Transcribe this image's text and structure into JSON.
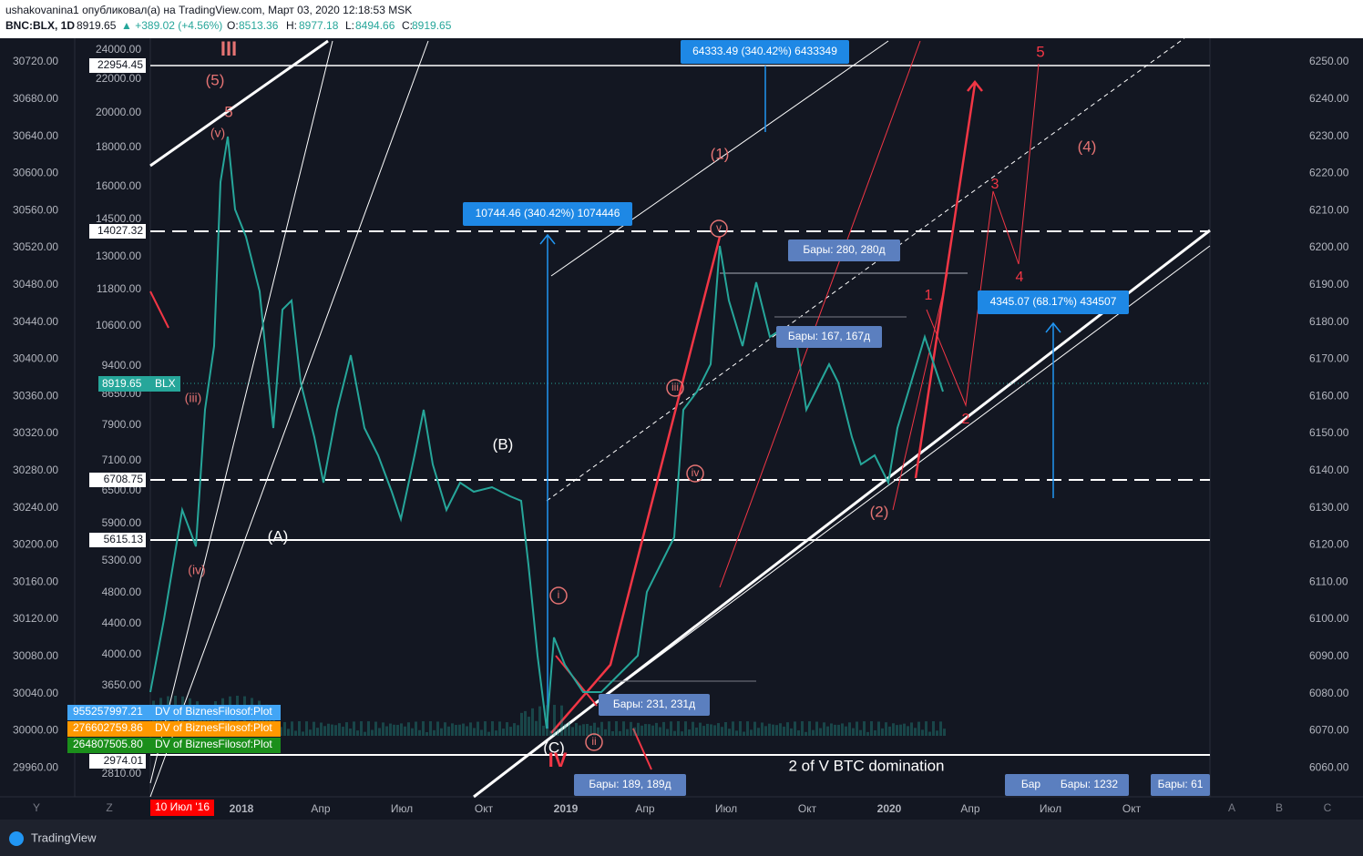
{
  "header": {
    "author_line": "ushakovanina1 опубликовал(а) на TradingView.com, Март 03, 2020 12:18:53 MSK",
    "symbol": "BNC:BLX, 1D",
    "price": "8919.65",
    "change": "▲ +389.02 (+4.56%)",
    "open_label": "O:",
    "open": "8513.36",
    "high_label": "H:",
    "high": "8977.18",
    "low_label": "L:",
    "low": "8494.66",
    "close_label": "C:",
    "close": "8919.65"
  },
  "scale_left": [
    "30720.00",
    "30680.00",
    "30640.00",
    "30600.00",
    "30560.00",
    "30520.00",
    "30480.00",
    "30440.00",
    "30400.00",
    "30360.00",
    "30320.00",
    "30280.00",
    "30240.00",
    "30200.00",
    "30160.00",
    "30120.00",
    "30080.00",
    "30040.00",
    "30000.00",
    "29960.00"
  ],
  "scale_price": [
    "24000.00",
    "22000.00",
    "20000.00",
    "18000.00",
    "16000.00",
    "14500.00",
    "13000.00",
    "11800.00",
    "10600.00",
    "9400.00",
    "8650.00",
    "7900.00",
    "7100.00",
    "6500.00",
    "5900.00",
    "5300.00",
    "4800.00",
    "4400.00",
    "4000.00",
    "3650.00",
    "2810.00"
  ],
  "scale_right": [
    "6250.00",
    "6240.00",
    "6230.00",
    "6220.00",
    "6210.00",
    "6200.00",
    "6190.00",
    "6180.00",
    "6170.00",
    "6160.00",
    "6150.00",
    "6140.00",
    "6130.00",
    "6120.00",
    "6110.00",
    "6100.00",
    "6090.00",
    "6080.00",
    "6070.00",
    "6060.00"
  ],
  "level_labels": [
    "22954.45",
    "14027.32",
    "6708.75",
    "5615.13",
    "2974.01"
  ],
  "current_price": {
    "value": "8919.65",
    "symbol": "BLX"
  },
  "indicators": [
    {
      "value": "955257997.21",
      "name": "DV of BiznesFilosof:Plot"
    },
    {
      "value": "276602759.86",
      "name": "DV of BiznesFilosof:Plot"
    },
    {
      "value": "264807505.80",
      "name": "DV of BiznesFilosof:Plot"
    }
  ],
  "time_start": "10 Июл '16",
  "time_axis": [
    "2018",
    "Апр",
    "Июл",
    "Окт",
    "2019",
    "Апр",
    "Июл",
    "Окт",
    "2020",
    "Апр",
    "Июл",
    "Окт"
  ],
  "measure_boxes": [
    "64333.49 (340.42%) 6433349",
    "10744.46 (340.42%) 1074446",
    "4345.07 (68.17%) 434507"
  ],
  "bar_boxes": [
    "Бары: 280, 280д",
    "Бары: 167, 167д",
    "Бары: 231, 231д",
    "Бары: 189, 189д",
    "Бар",
    "Бары: 1232",
    "Бары: 61"
  ],
  "wave_labels": [
    "III",
    "(5)",
    "5",
    "(v)",
    "(iii)",
    "(iv)",
    "(A)",
    "(B)",
    "(C)",
    "IV",
    "i",
    "ii",
    "iii",
    "iv",
    "v",
    "(1)",
    "(2)",
    "1",
    "2",
    "3",
    "4",
    "5",
    "(4)"
  ],
  "note": "2 of V BTC domination",
  "bottom_buttons": [
    "Y",
    "Z",
    "A",
    "B",
    "C"
  ],
  "brand": "TradingView"
}
